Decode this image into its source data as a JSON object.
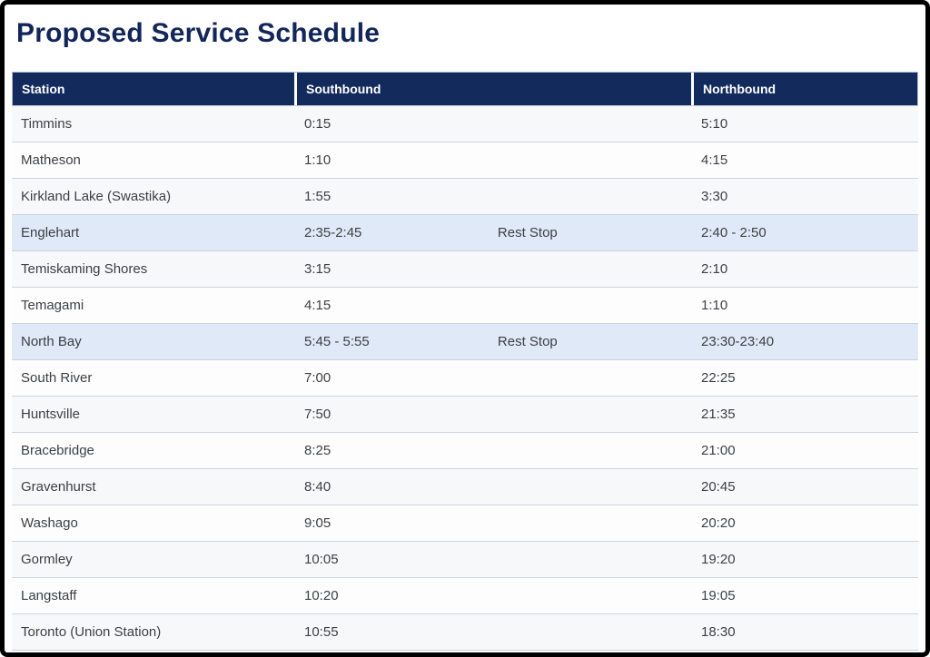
{
  "page": {
    "title": "Proposed Service Schedule"
  },
  "colors": {
    "header_background": "#132a5d",
    "title_text": "#12265a",
    "highlight_row": "#dfe9f8",
    "striped_row": "#f7f8f9",
    "row_divider": "#ccd3e0",
    "body_text": "#3d4043"
  },
  "table": {
    "columns": [
      {
        "label": "Station"
      },
      {
        "label": "Southbound"
      },
      {
        "label": "Northbound"
      }
    ],
    "rows": [
      {
        "station": "Timmins",
        "southbound": "0:15",
        "rest_stop": "",
        "northbound": "5:10",
        "highlighted": false
      },
      {
        "station": "Matheson",
        "southbound": "1:10",
        "rest_stop": "",
        "northbound": "4:15",
        "highlighted": false
      },
      {
        "station": "Kirkland Lake (Swastika)",
        "southbound": "1:55",
        "rest_stop": "",
        "northbound": "3:30",
        "highlighted": false
      },
      {
        "station": "Englehart",
        "southbound": "2:35-2:45",
        "rest_stop": "Rest Stop",
        "northbound": "2:40 - 2:50",
        "highlighted": true
      },
      {
        "station": "Temiskaming Shores",
        "southbound": "3:15",
        "rest_stop": "",
        "northbound": "2:10",
        "highlighted": false
      },
      {
        "station": "Temagami",
        "southbound": "4:15",
        "rest_stop": "",
        "northbound": "1:10",
        "highlighted": false
      },
      {
        "station": "North Bay",
        "southbound": "5:45 - 5:55",
        "rest_stop": "Rest Stop",
        "northbound": "23:30-23:40",
        "highlighted": true
      },
      {
        "station": "South River",
        "southbound": "7:00",
        "rest_stop": "",
        "northbound": "22:25",
        "highlighted": false
      },
      {
        "station": "Huntsville",
        "southbound": "7:50",
        "rest_stop": "",
        "northbound": "21:35",
        "highlighted": false
      },
      {
        "station": "Bracebridge",
        "southbound": "8:25",
        "rest_stop": "",
        "northbound": "21:00",
        "highlighted": false
      },
      {
        "station": "Gravenhurst",
        "southbound": "8:40",
        "rest_stop": "",
        "northbound": "20:45",
        "highlighted": false
      },
      {
        "station": "Washago",
        "southbound": "9:05",
        "rest_stop": "",
        "northbound": "20:20",
        "highlighted": false
      },
      {
        "station": "Gormley",
        "southbound": "10:05",
        "rest_stop": "",
        "northbound": "19:20",
        "highlighted": false
      },
      {
        "station": "Langstaff",
        "southbound": "10:20",
        "rest_stop": "",
        "northbound": "19:05",
        "highlighted": false
      },
      {
        "station": "Toronto (Union Station)",
        "southbound": "10:55",
        "rest_stop": "",
        "northbound": "18:30",
        "highlighted": false
      }
    ]
  }
}
